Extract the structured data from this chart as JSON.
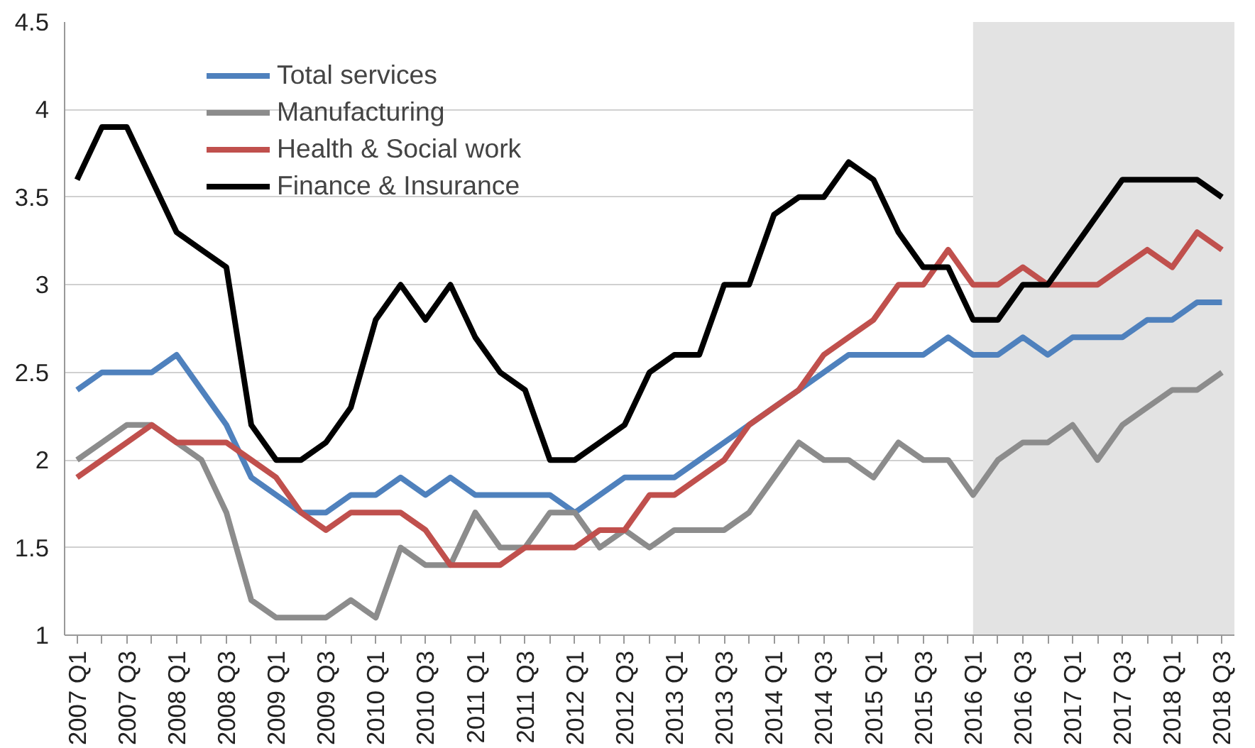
{
  "chart_data": {
    "type": "line",
    "categories": [
      "2007 Q1",
      null,
      "2007 Q3",
      null,
      "2008 Q1",
      null,
      "2008 Q3",
      null,
      "2009 Q1",
      null,
      "2009 Q3",
      null,
      "2010 Q1",
      null,
      "2010 Q3",
      null,
      "2011 Q1",
      null,
      "2011 Q3",
      null,
      "2012 Q1",
      null,
      "2012 Q3",
      null,
      "2013 Q1",
      null,
      "2013 Q3",
      null,
      "2014 Q1",
      null,
      "2014 Q3",
      null,
      "2015 Q1",
      null,
      "2015 Q3",
      null,
      "2016 Q1",
      null,
      "2016 Q3",
      null,
      "2017 Q1",
      null,
      "2017 Q3",
      null,
      "2018 Q1",
      null,
      "2018 Q3"
    ],
    "series": [
      {
        "name": "Total services",
        "color": "#4f81bd",
        "values": [
          2.4,
          2.5,
          2.5,
          2.5,
          2.6,
          2.4,
          2.2,
          1.9,
          1.8,
          1.7,
          1.7,
          1.8,
          1.8,
          1.9,
          1.8,
          1.9,
          1.8,
          1.8,
          1.8,
          1.8,
          1.7,
          1.8,
          1.9,
          1.9,
          1.9,
          2.0,
          2.1,
          2.2,
          2.3,
          2.4,
          2.5,
          2.6,
          2.6,
          2.6,
          2.6,
          2.7,
          2.6,
          2.6,
          2.7,
          2.6,
          2.7,
          2.7,
          2.7,
          2.8,
          2.8,
          2.9,
          2.9
        ]
      },
      {
        "name": "Manufacturing",
        "color": "#8c8c8c",
        "values": [
          2.0,
          2.1,
          2.2,
          2.2,
          2.1,
          2.0,
          1.7,
          1.2,
          1.1,
          1.1,
          1.1,
          1.2,
          1.1,
          1.5,
          1.4,
          1.4,
          1.7,
          1.5,
          1.5,
          1.7,
          1.7,
          1.5,
          1.6,
          1.5,
          1.6,
          1.6,
          1.6,
          1.7,
          1.9,
          2.1,
          2.0,
          2.0,
          1.9,
          2.1,
          2.0,
          2.0,
          1.8,
          2.0,
          2.1,
          2.1,
          2.2,
          2.0,
          2.2,
          2.3,
          2.4,
          2.4,
          2.5
        ]
      },
      {
        "name": "Health & Social work",
        "color": "#c0504d",
        "values": [
          1.9,
          2.0,
          2.1,
          2.2,
          2.1,
          2.1,
          2.1,
          2.0,
          1.9,
          1.7,
          1.6,
          1.7,
          1.7,
          1.7,
          1.6,
          1.4,
          1.4,
          1.4,
          1.5,
          1.5,
          1.5,
          1.6,
          1.6,
          1.8,
          1.8,
          1.9,
          2.0,
          2.2,
          2.3,
          2.4,
          2.6,
          2.7,
          2.8,
          3.0,
          3.0,
          3.2,
          3.0,
          3.0,
          3.1,
          3.0,
          3.0,
          3.0,
          3.1,
          3.2,
          3.1,
          3.3,
          3.2
        ]
      },
      {
        "name": "Finance & Insurance",
        "color": "#000000",
        "values": [
          3.6,
          3.9,
          3.9,
          3.6,
          3.3,
          3.2,
          3.1,
          2.2,
          2.0,
          2.0,
          2.1,
          2.3,
          2.8,
          3.0,
          2.8,
          3.0,
          2.7,
          2.5,
          2.4,
          2.0,
          2.0,
          2.1,
          2.2,
          2.5,
          2.6,
          2.6,
          3.0,
          3.0,
          3.4,
          3.5,
          3.5,
          3.7,
          3.6,
          3.3,
          3.1,
          3.1,
          2.8,
          2.8,
          3.0,
          3.0,
          3.2,
          3.4,
          3.6,
          3.6,
          3.6,
          3.6,
          3.5
        ]
      }
    ],
    "ylim": [
      1,
      4.5
    ],
    "yticks": [
      1,
      1.5,
      2,
      2.5,
      3,
      3.5,
      4,
      4.5
    ],
    "grid": "y",
    "legend": "top left",
    "marker": "none",
    "line_style": "solid",
    "bands": [
      {
        "axis": "x",
        "from": "2016 Q1",
        "to": "2018 Q3",
        "color": "#e3e3e3"
      }
    ]
  }
}
